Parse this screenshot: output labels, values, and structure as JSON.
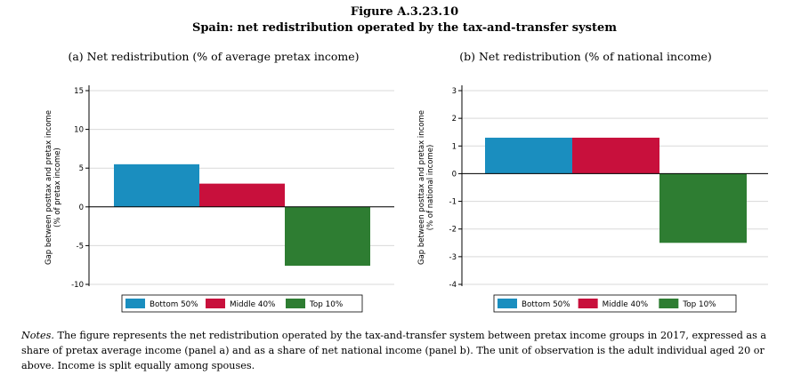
{
  "figure": {
    "title_line1": "Figure A.3.23.10",
    "title_line2": "Spain: net redistribution operated by the tax-and-transfer system"
  },
  "notes": {
    "label": "Notes.",
    "text": "The figure represents the net redistribution operated by the tax-and-transfer system between pretax income groups in 2017, expressed as a share of pretax average income (panel a) and as a share of net national income (panel b). The unit of observation is the adult individual aged 20 or above. Income is split equally among spouses."
  },
  "colors": {
    "bottom50": "#1a8ebf",
    "middle40": "#c8103c",
    "top10": "#2e7d32",
    "grid": "#d9d9d9"
  },
  "chart_data": [
    {
      "type": "bar",
      "title": "(a) Net redistribution (% of average pretax income)",
      "ylabel_line1": "Gap between posttax and pretax income",
      "ylabel_line2": "(% of pretax income)",
      "ylim": [
        -10,
        15
      ],
      "yticks": [
        15,
        10,
        5,
        0,
        -5,
        -10
      ],
      "grid": true,
      "legend_position": "bottom",
      "series": [
        {
          "name": "Bottom 50%",
          "value": 5.5,
          "color": "#1a8ebf"
        },
        {
          "name": "Middle 40%",
          "value": 3.0,
          "color": "#c8103c"
        },
        {
          "name": "Top 10%",
          "value": -7.6,
          "color": "#2e7d32"
        }
      ]
    },
    {
      "type": "bar",
      "title": "(b) Net redistribution (% of national income)",
      "ylabel_line1": "Gap between posttax and pretax income",
      "ylabel_line2": "(% of national income)",
      "ylim": [
        -4,
        3
      ],
      "yticks": [
        3,
        2,
        1,
        0,
        -1,
        -2,
        -3,
        -4
      ],
      "grid": true,
      "legend_position": "bottom",
      "series": [
        {
          "name": "Bottom 50%",
          "value": 1.3,
          "color": "#1a8ebf"
        },
        {
          "name": "Middle 40%",
          "value": 1.3,
          "color": "#c8103c"
        },
        {
          "name": "Top 10%",
          "value": -2.5,
          "color": "#2e7d32"
        }
      ]
    }
  ]
}
